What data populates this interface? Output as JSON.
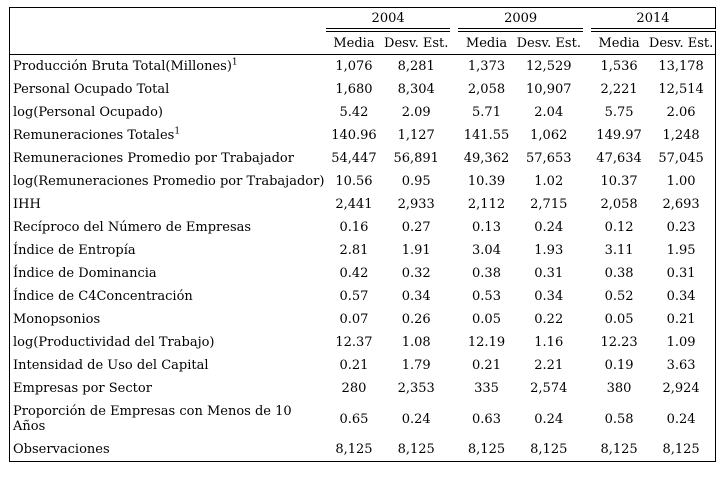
{
  "table": {
    "years": [
      "2004",
      "2009",
      "2014"
    ],
    "sub_headers": [
      "Media",
      "Desv. Est."
    ],
    "rows": [
      {
        "label": "Producción Bruta Total(Millones)",
        "sup": "1",
        "values": [
          "1,076",
          "8,281",
          "1,373",
          "12,529",
          "1,536",
          "13,178"
        ]
      },
      {
        "label": "Personal Ocupado Total",
        "values": [
          "1,680",
          "8,304",
          "2,058",
          "10,907",
          "2,221",
          "12,514"
        ]
      },
      {
        "label": "log(Personal Ocupado)",
        "values": [
          "5.42",
          "2.09",
          "5.71",
          "2.04",
          "5.75",
          "2.06"
        ]
      },
      {
        "label": "Remuneraciones Totales",
        "sup": "1",
        "values": [
          "140.96",
          "1,127",
          "141.55",
          "1,062",
          "149.97",
          "1,248"
        ]
      },
      {
        "label": "Remuneraciones Promedio por Trabajador",
        "values": [
          "54,447",
          "56,891",
          "49,362",
          "57,653",
          "47,634",
          "57,045"
        ]
      },
      {
        "label": "log(Remuneraciones Promedio por Trabajador)",
        "values": [
          "10.56",
          "0.95",
          "10.39",
          "1.02",
          "10.37",
          "1.00"
        ]
      },
      {
        "label": "IHH",
        "values": [
          "2,441",
          "2,933",
          "2,112",
          "2,715",
          "2,058",
          "2,693"
        ]
      },
      {
        "label": "Recíproco del Número de Empresas",
        "values": [
          "0.16",
          "0.27",
          "0.13",
          "0.24",
          "0.12",
          "0.23"
        ]
      },
      {
        "label": "Índice de Entropía",
        "values": [
          "2.81",
          "1.91",
          "3.04",
          "1.93",
          "3.11",
          "1.95"
        ]
      },
      {
        "label": "Índice de Dominancia",
        "values": [
          "0.42",
          "0.32",
          "0.38",
          "0.31",
          "0.38",
          "0.31"
        ]
      },
      {
        "label": "Índice de C4Concentración",
        "values": [
          "0.57",
          "0.34",
          "0.53",
          "0.34",
          "0.52",
          "0.34"
        ]
      },
      {
        "label": "Monopsonios",
        "values": [
          "0.07",
          "0.26",
          "0.05",
          "0.22",
          "0.05",
          "0.21"
        ]
      },
      {
        "label": "log(Productividad del Trabajo)",
        "values": [
          "12.37",
          "1.08",
          "12.19",
          "1.16",
          "12.23",
          "1.09"
        ]
      },
      {
        "label": "Intensidad de Uso del Capital",
        "values": [
          "0.21",
          "1.79",
          "0.21",
          "2.21",
          "0.19",
          "3.63"
        ]
      },
      {
        "label": "Empresas por Sector",
        "values": [
          "280",
          "2,353",
          "335",
          "2,574",
          "380",
          "2,924"
        ]
      },
      {
        "label": "Proporción de Empresas con Menos de 10 Años",
        "values": [
          "0.65",
          "0.24",
          "0.63",
          "0.24",
          "0.58",
          "0.24"
        ]
      },
      {
        "label": "Observaciones",
        "values": [
          "8,125",
          "8,125",
          "8,125",
          "8,125",
          "8,125",
          "8,125"
        ]
      }
    ],
    "colors": {
      "border": "#000000",
      "text": "#000000",
      "background": "#ffffff"
    }
  }
}
